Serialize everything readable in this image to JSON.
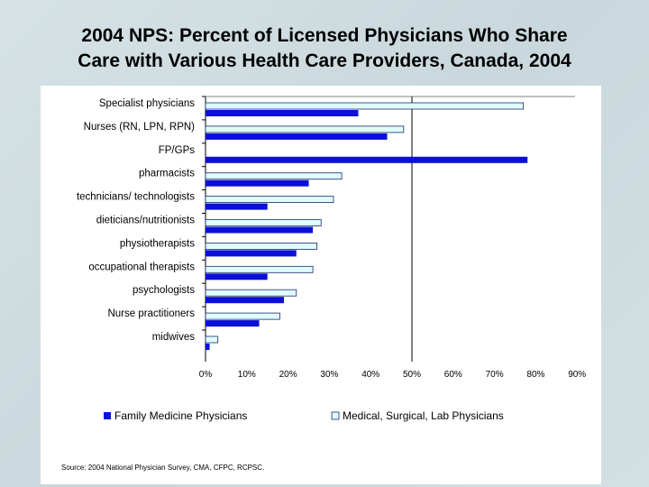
{
  "title_line1": "2004 NPS: Percent of Licensed Physicians Who Share",
  "title_line2": "Care with Various Health Care Providers, Canada, 2004",
  "source": "Source: 2004 National Physician Survey, CMA, CFPC, RCPSC.",
  "colors": {
    "family": "#0a10d8",
    "medical": "#dffcff",
    "medical_border": "#1a2a6a"
  },
  "chart_data": {
    "type": "bar",
    "orientation": "horizontal",
    "categories": [
      "Specialist physicians",
      "Nurses (RN, LPN, RPN)",
      "FP/GPs",
      "pharmacists",
      "technicians/ technologists",
      "dieticians/nutritionists",
      "physiotherapists",
      "occupational therapists",
      "psychologists",
      "Nurse practitioners",
      "midwives"
    ],
    "series": [
      {
        "name": "Family Medicine Physicians",
        "values": [
          37,
          44,
          78,
          25,
          15,
          26,
          22,
          15,
          19,
          13,
          1
        ]
      },
      {
        "name": "Medical, Surgical, Lab Physicians",
        "values": [
          77,
          48,
          null,
          33,
          31,
          28,
          27,
          26,
          22,
          18,
          3
        ]
      }
    ],
    "xticks": [
      "0%",
      "10%",
      "20%",
      "30%",
      "40%",
      "50%",
      "60%",
      "70%",
      "80%",
      "90%"
    ],
    "xlim": [
      0,
      90
    ],
    "grid": "vertical line at 50%",
    "legend_position": "bottom"
  }
}
